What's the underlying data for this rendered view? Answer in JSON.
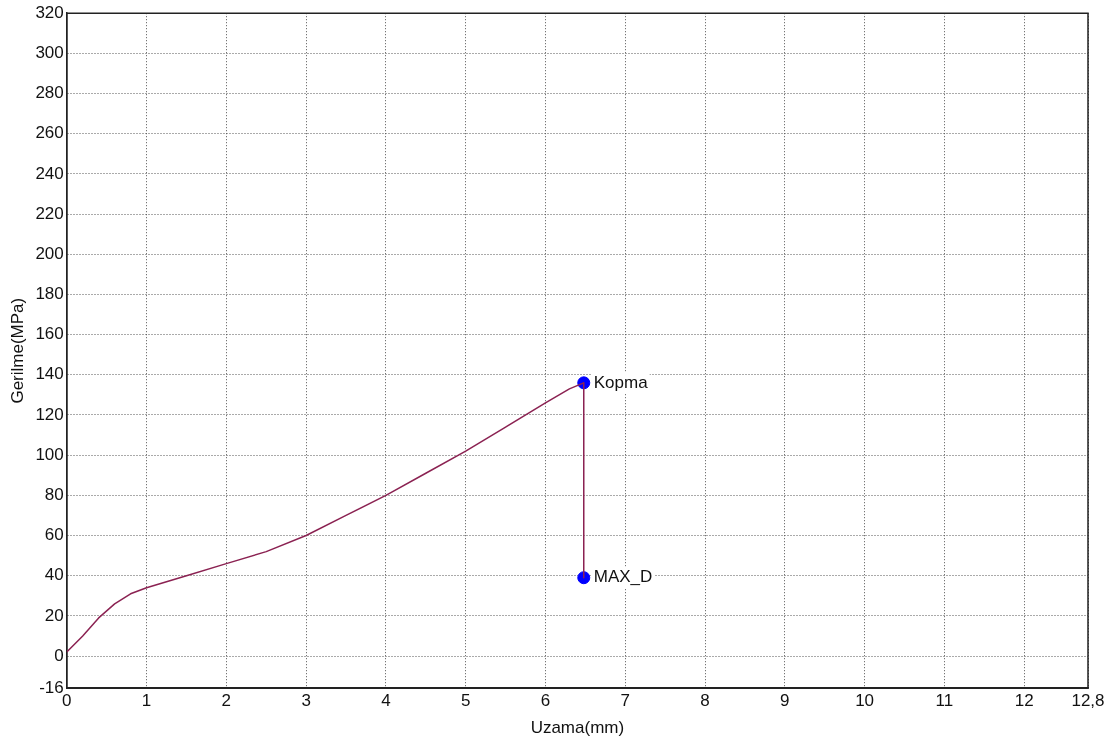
{
  "chart_data": {
    "type": "line",
    "xlabel": "Uzama(mm)",
    "ylabel": "Gerilme(MPa)",
    "xlim": [
      0,
      12.8
    ],
    "xticks": [
      0,
      1,
      2,
      3,
      4,
      5,
      6,
      7,
      8,
      9,
      10,
      11,
      12,
      {
        "value": 12.8,
        "label": "12,8"
      }
    ],
    "ylim": [
      -16,
      320
    ],
    "yticks": [
      -16,
      0,
      20,
      40,
      60,
      80,
      100,
      120,
      140,
      160,
      180,
      200,
      220,
      240,
      260,
      280,
      300,
      320
    ],
    "grid": true,
    "marker": "none",
    "line_style": "solid",
    "series": [
      {
        "color": "#8b2252",
        "x": [
          0,
          0.2,
          0.4,
          0.6,
          0.8,
          1,
          1.5,
          2,
          2.5,
          3,
          3.5,
          4,
          4.5,
          5,
          5.5,
          6,
          6.3,
          6.48,
          6.48
        ],
        "values": [
          2,
          10,
          19,
          26,
          31,
          34,
          40,
          46,
          52,
          60,
          70,
          80,
          91,
          102,
          114,
          126,
          133,
          136,
          39
        ]
      },
      {
        "type": "scatter",
        "marker": "circle",
        "color": "#0000ff",
        "x": [
          6.48,
          6.48
        ],
        "values": [
          136,
          39
        ]
      }
    ],
    "annotations": [
      {
        "text": "Kopma",
        "x": 6.48,
        "y": 136
      },
      {
        "text": "MAX_D",
        "x": 6.48,
        "y": 39
      }
    ]
  }
}
